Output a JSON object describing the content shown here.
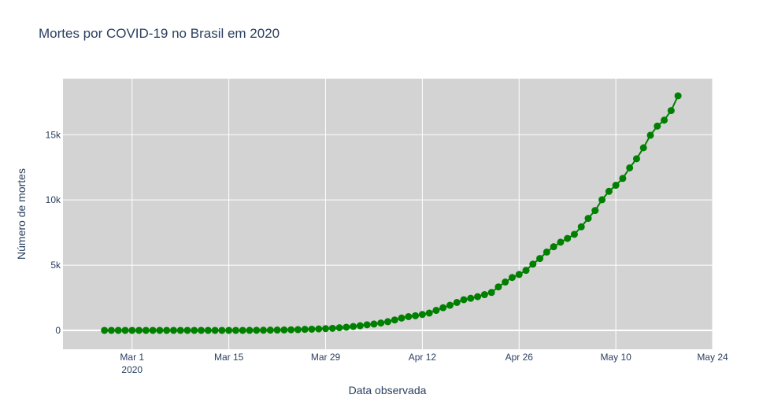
{
  "chart_data": {
    "type": "line",
    "title": "Mortes por COVID-19 no Brasil em 2020",
    "xlabel": "Data observada",
    "ylabel": "Número de mortes",
    "x_axis": {
      "type": "date",
      "range": [
        "2020-02-20",
        "2020-05-24"
      ],
      "ticks": [
        {
          "date": "2020-03-01",
          "label": "Mar 1",
          "sublabel": "2020"
        },
        {
          "date": "2020-03-15",
          "label": "Mar 15"
        },
        {
          "date": "2020-03-29",
          "label": "Mar 29"
        },
        {
          "date": "2020-04-12",
          "label": "Apr 12"
        },
        {
          "date": "2020-04-26",
          "label": "Apr 26"
        },
        {
          "date": "2020-05-10",
          "label": "May 10"
        },
        {
          "date": "2020-05-24",
          "label": "May 24"
        }
      ]
    },
    "y_axis": {
      "range": [
        -1450,
        19300
      ],
      "ticks": [
        {
          "value": 0,
          "label": "0"
        },
        {
          "value": 5000,
          "label": "5k"
        },
        {
          "value": 10000,
          "label": "10k"
        },
        {
          "value": 15000,
          "label": "15k"
        }
      ]
    },
    "grid": true,
    "plot_background": "#d3d3d3",
    "series": [
      {
        "color": "#008000",
        "mode": "lines+markers",
        "start_date": "2020-02-26",
        "values": [
          0,
          0,
          0,
          0,
          0,
          0,
          0,
          0,
          0,
          0,
          0,
          0,
          0,
          0,
          0,
          0,
          0,
          0,
          0,
          0,
          0,
          3,
          7,
          11,
          18,
          25,
          34,
          46,
          57,
          77,
          92,
          111,
          136,
          159,
          201,
          240,
          299,
          359,
          431,
          486,
          564,
          667,
          800,
          944,
          1057,
          1124,
          1223,
          1328,
          1532,
          1736,
          1924,
          2141,
          2354,
          2462,
          2587,
          2741,
          2906,
          3331,
          3704,
          4057,
          4286,
          4603,
          5083,
          5513,
          6006,
          6412,
          6761,
          7051,
          7367,
          7938,
          8588,
          9190,
          10017,
          10656,
          11123,
          11653,
          12461,
          13158,
          13999,
          14962,
          15662,
          16118,
          16853,
          17983
        ]
      }
    ]
  }
}
